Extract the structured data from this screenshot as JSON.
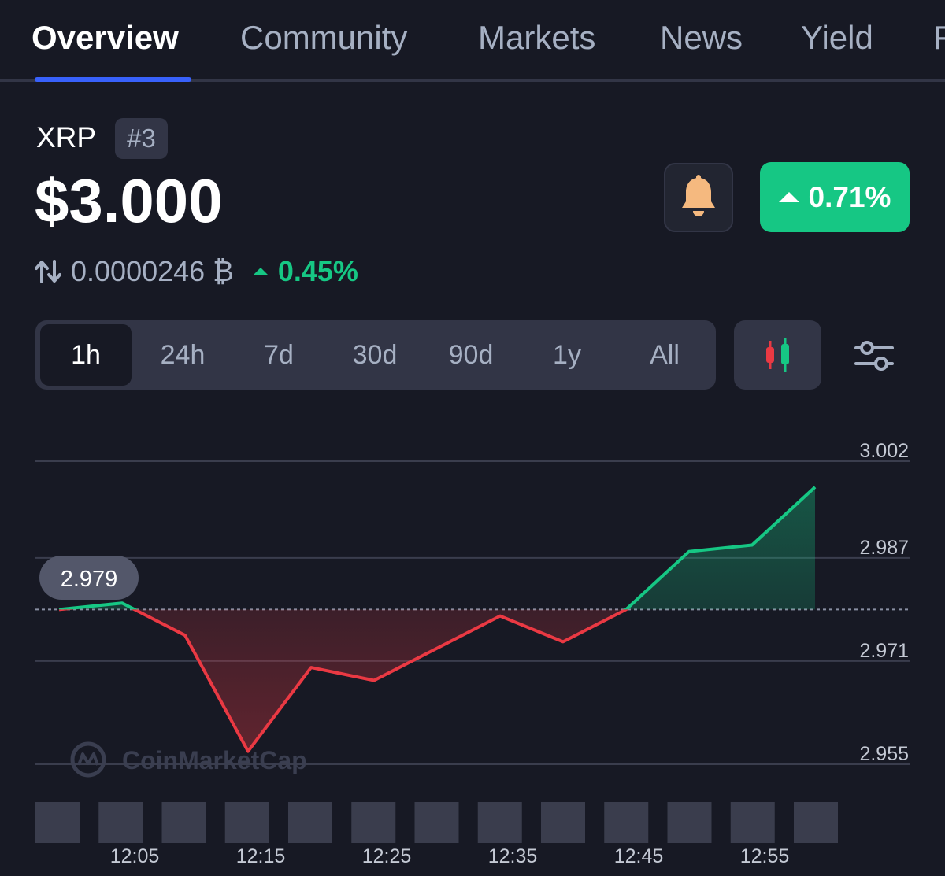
{
  "tabs": [
    {
      "label": "Overview",
      "active": true
    },
    {
      "label": "Community"
    },
    {
      "label": "Markets"
    },
    {
      "label": "News"
    },
    {
      "label": "Yield"
    },
    {
      "label": "F"
    }
  ],
  "coin": {
    "symbol": "XRP",
    "rank": "#3",
    "price": "$3.000",
    "change_24h": "0.71%",
    "change_direction": "up",
    "btc_price": "0.0000246 ₿",
    "btc_change": "0.45%"
  },
  "colors": {
    "background": "#171924",
    "surface": "#323546",
    "accent": "#3861fb",
    "positive": "#16c784",
    "negative": "#ea3943",
    "bell": "#f5b97f"
  },
  "icons": {
    "alert": "bell-icon",
    "convert": "swap-arrows-icon",
    "chart_type": "candlestick-icon",
    "settings": "sliders-icon"
  },
  "time_ranges": [
    "1h",
    "24h",
    "7d",
    "30d",
    "90d",
    "1y",
    "All"
  ],
  "active_range": "1h",
  "watermark": "CoinMarketCap",
  "chart_data": {
    "type": "line",
    "title": "",
    "xlabel": "",
    "ylabel": "",
    "x_ticks": [
      "12:05",
      "12:15",
      "12:25",
      "12:35",
      "12:45",
      "12:55"
    ],
    "y_ticks": [
      3.002,
      2.987,
      2.971,
      2.955
    ],
    "ylim": [
      2.952,
      3.004
    ],
    "baseline": 2.979,
    "baseline_label": "2.979",
    "x_minutes": [
      0,
      5,
      10,
      15,
      20,
      25,
      30,
      35,
      40,
      45,
      50,
      55,
      60
    ],
    "x_tick_minutes": [
      6,
      16,
      26,
      36,
      46,
      56
    ],
    "series": [
      {
        "values": [
          2.979,
          2.98,
          2.975,
          2.957,
          2.97,
          2.968,
          2.973,
          2.978,
          2.974,
          2.979,
          2.988,
          2.989,
          2.998
        ]
      }
    ],
    "volume_bars": 13,
    "grid": true,
    "above_color": "#16c784",
    "below_color": "#ea3943"
  }
}
